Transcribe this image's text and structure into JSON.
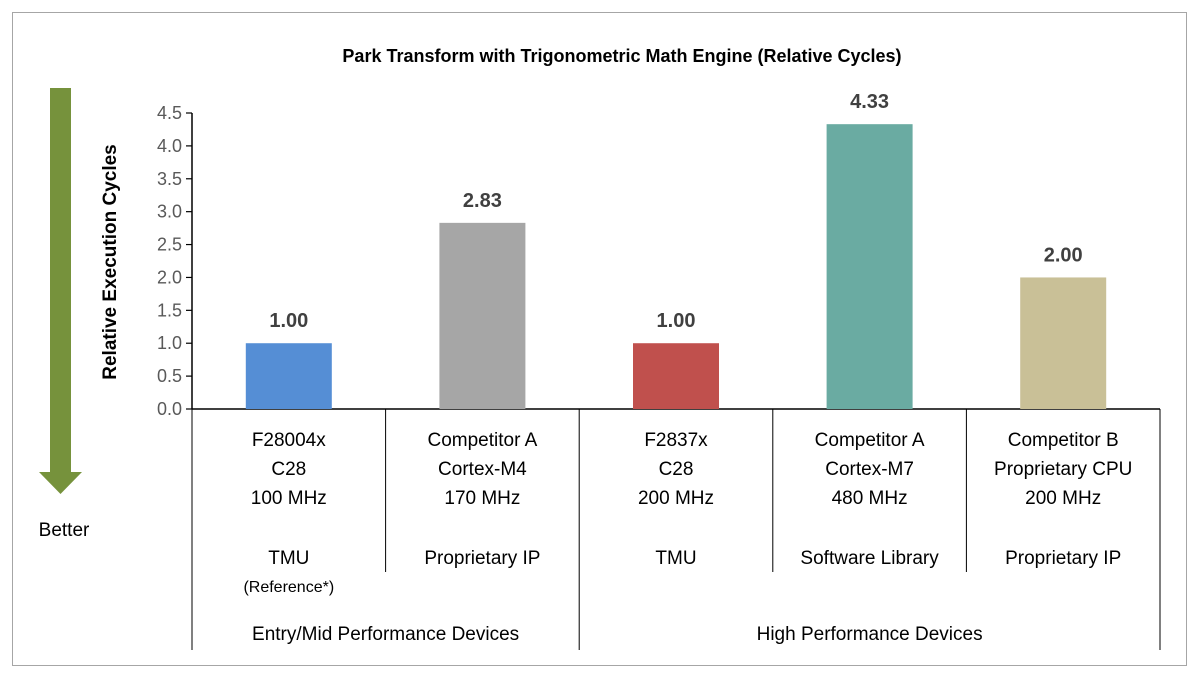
{
  "chart_data": {
    "type": "bar",
    "title": "Park Transform with Trigonometric Math Engine (Relative Cycles)",
    "ylabel": "Relative Execution Cycles",
    "ylim": [
      0,
      4.5
    ],
    "yticks": [
      "0.0",
      "0.5",
      "1.0",
      "1.5",
      "2.0",
      "2.5",
      "3.0",
      "3.5",
      "4.0",
      "4.5"
    ],
    "grid": false,
    "categories": [
      {
        "lines": [
          "F28004x",
          "C28",
          "100 MHz"
        ],
        "engine": "TMU",
        "note": "(Reference*)",
        "value": 1.0,
        "label": "1.00",
        "color": "#558ed5"
      },
      {
        "lines": [
          "Competitor A",
          "Cortex-M4",
          "170 MHz"
        ],
        "engine": "Proprietary IP",
        "note": "",
        "value": 2.83,
        "label": "2.83",
        "color": "#a6a6a6"
      },
      {
        "lines": [
          "F2837x",
          "C28",
          "200 MHz"
        ],
        "engine": "TMU",
        "note": "",
        "value": 1.0,
        "label": "1.00",
        "color": "#c0504d"
      },
      {
        "lines": [
          "Competitor A",
          "Cortex-M7",
          "480 MHz"
        ],
        "engine": "Software Library",
        "note": "",
        "value": 4.33,
        "label": "4.33",
        "color": "#6aaba2"
      },
      {
        "lines": [
          "Competitor B",
          "Proprietary CPU",
          "200 MHz"
        ],
        "engine": "Proprietary IP",
        "note": "",
        "value": 2.0,
        "label": "2.00",
        "color": "#c9c097"
      }
    ],
    "groups": [
      {
        "label": "Entry/Mid Performance Devices",
        "span": [
          0,
          1
        ]
      },
      {
        "label": "High Performance Devices",
        "span": [
          2,
          4
        ]
      }
    ],
    "annotation": {
      "label": "Better",
      "arrow_direction": "down",
      "arrow_color": "#76923c"
    }
  }
}
